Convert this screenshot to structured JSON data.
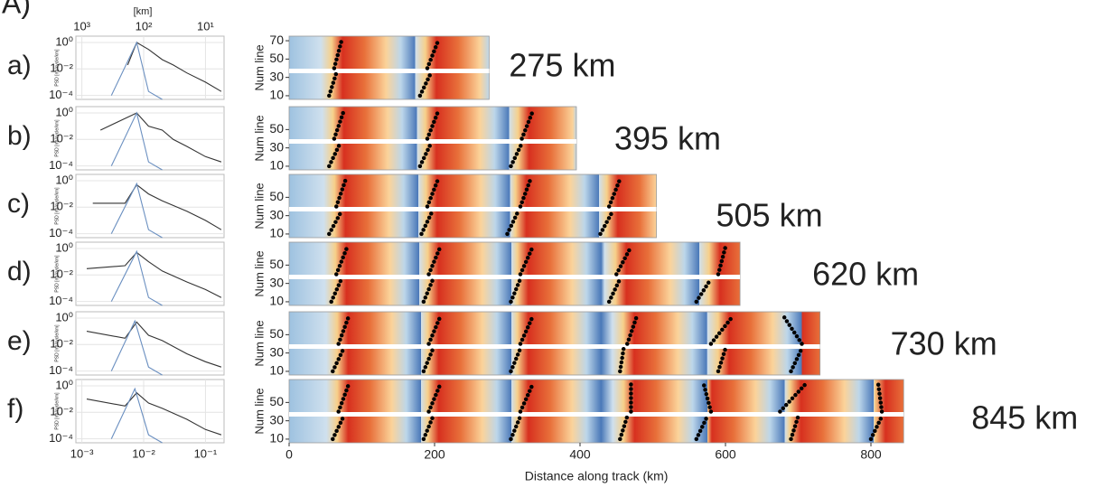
{
  "figure_label": "A)",
  "chart_data": [
    {
      "type": "line",
      "panel_label": "a)",
      "ylabel": "PSD [m²/cycle/km]",
      "log_x": true,
      "log_y": true,
      "xlim": [
        0.0008,
        0.2
      ],
      "ylim": [
        5e-05,
        3
      ],
      "yticks": [
        {
          "value": 1,
          "label": "10⁰"
        },
        {
          "value": 0.01,
          "label": "10⁻²"
        },
        {
          "value": 0.0001,
          "label": "10⁻⁴"
        }
      ],
      "x2label": "[km]",
      "x2ticks": [
        {
          "value": 1000,
          "label": "10³"
        },
        {
          "value": 100,
          "label": "10²"
        },
        {
          "value": 10,
          "label": "10¹"
        }
      ],
      "grid": true,
      "series": [
        {
          "color": "#333333",
          "x": [
            0.0055,
            0.0077,
            0.012,
            0.02,
            0.03,
            0.05,
            0.1,
            0.18
          ],
          "values": [
            0.02,
            1,
            0.3,
            0.05,
            0.02,
            0.005,
            0.001,
            0.0002
          ]
        },
        {
          "color": "#6a8fc0",
          "x": [
            0.003,
            0.0077,
            0.012,
            0.02
          ],
          "values": [
            0.0001,
            1,
            0.0002,
            5e-05
          ]
        }
      ]
    },
    {
      "type": "line",
      "panel_label": "b)",
      "ylabel": "PSD [m²/cycle/km]",
      "log_x": true,
      "log_y": true,
      "xlim": [
        0.0008,
        0.2
      ],
      "ylim": [
        5e-05,
        3
      ],
      "yticks": [
        {
          "value": 1,
          "label": "10⁰"
        },
        {
          "value": 0.01,
          "label": "10⁻²"
        },
        {
          "value": 0.0001,
          "label": "10⁻⁴"
        }
      ],
      "grid": true,
      "series": [
        {
          "color": "#333333",
          "x": [
            0.002,
            0.0077,
            0.012,
            0.02,
            0.03,
            0.05,
            0.1,
            0.18
          ],
          "values": [
            0.05,
            1,
            0.1,
            0.05,
            0.01,
            0.003,
            0.0005,
            0.0002
          ]
        },
        {
          "color": "#6a8fc0",
          "x": [
            0.003,
            0.0077,
            0.012,
            0.02
          ],
          "values": [
            0.0001,
            1,
            0.0002,
            5e-05
          ]
        }
      ]
    },
    {
      "type": "line",
      "panel_label": "c)",
      "ylabel": "PSD [m²/cycle/km]",
      "log_x": true,
      "log_y": true,
      "xlim": [
        0.0008,
        0.2
      ],
      "ylim": [
        5e-05,
        3
      ],
      "yticks": [
        {
          "value": 1,
          "label": "10⁰"
        },
        {
          "value": 0.01,
          "label": "10⁻²"
        },
        {
          "value": 0.0001,
          "label": "10⁻⁴"
        }
      ],
      "grid": true,
      "series": [
        {
          "color": "#333333",
          "x": [
            0.0015,
            0.005,
            0.0077,
            0.012,
            0.02,
            0.05,
            0.1,
            0.18
          ],
          "values": [
            0.02,
            0.02,
            0.5,
            0.1,
            0.03,
            0.005,
            0.001,
            0.0002
          ]
        },
        {
          "color": "#6a8fc0",
          "x": [
            0.003,
            0.0077,
            0.012,
            0.02
          ],
          "values": [
            0.0001,
            0.6,
            0.0002,
            5e-05
          ]
        }
      ]
    },
    {
      "type": "line",
      "panel_label": "d)",
      "ylabel": "PSD [m²/cycle/km]",
      "log_x": true,
      "log_y": true,
      "xlim": [
        0.0008,
        0.2
      ],
      "ylim": [
        5e-05,
        3
      ],
      "yticks": [
        {
          "value": 1,
          "label": "10⁰"
        },
        {
          "value": 0.01,
          "label": "10⁻²"
        },
        {
          "value": 0.0001,
          "label": "10⁻⁴"
        }
      ],
      "grid": true,
      "series": [
        {
          "color": "#333333",
          "x": [
            0.0012,
            0.005,
            0.0077,
            0.012,
            0.02,
            0.05,
            0.1,
            0.18
          ],
          "values": [
            0.03,
            0.05,
            0.5,
            0.1,
            0.02,
            0.003,
            0.0008,
            0.0002
          ]
        },
        {
          "color": "#6a8fc0",
          "x": [
            0.003,
            0.0077,
            0.012,
            0.02
          ],
          "values": [
            0.0001,
            0.6,
            0.0002,
            5e-05
          ]
        }
      ]
    },
    {
      "type": "line",
      "panel_label": "e)",
      "ylabel": "PSD [m²/cycle/km]",
      "log_x": true,
      "log_y": true,
      "xlim": [
        0.0008,
        0.2
      ],
      "ylim": [
        5e-05,
        3
      ],
      "yticks": [
        {
          "value": 1,
          "label": "10⁰"
        },
        {
          "value": 0.01,
          "label": "10⁻²"
        },
        {
          "value": 0.0001,
          "label": "10⁻⁴"
        }
      ],
      "grid": true,
      "series": [
        {
          "color": "#333333",
          "x": [
            0.0012,
            0.005,
            0.0077,
            0.012,
            0.02,
            0.05,
            0.1,
            0.18
          ],
          "values": [
            0.1,
            0.03,
            0.5,
            0.05,
            0.02,
            0.002,
            0.0005,
            0.0002
          ]
        },
        {
          "color": "#6a8fc0",
          "x": [
            0.003,
            0.0072,
            0.012,
            0.02
          ],
          "values": [
            0.0001,
            0.6,
            0.0002,
            5e-05
          ]
        }
      ]
    },
    {
      "type": "line",
      "panel_label": "f)",
      "ylabel": "PSD [m²/cycle/km]",
      "log_x": true,
      "log_y": true,
      "xlim": [
        0.0008,
        0.2
      ],
      "ylim": [
        5e-05,
        3
      ],
      "yticks": [
        {
          "value": 1,
          "label": "10⁰"
        },
        {
          "value": 0.01,
          "label": "10⁻²"
        },
        {
          "value": 0.0001,
          "label": "10⁻⁴"
        }
      ],
      "xticks": [
        {
          "value": 0.001,
          "label": "10⁻³"
        },
        {
          "value": 0.01,
          "label": "10⁻²"
        },
        {
          "value": 0.1,
          "label": "10⁻¹"
        }
      ],
      "grid": true,
      "series": [
        {
          "color": "#333333",
          "x": [
            0.0012,
            0.005,
            0.0077,
            0.012,
            0.02,
            0.05,
            0.1,
            0.18
          ],
          "values": [
            0.1,
            0.03,
            0.3,
            0.05,
            0.02,
            0.003,
            0.0005,
            0.0002
          ]
        },
        {
          "color": "#6a8fc0",
          "x": [
            0.003,
            0.0072,
            0.012,
            0.02
          ],
          "values": [
            0.0001,
            0.6,
            0.0002,
            5e-05
          ]
        }
      ]
    },
    {
      "type": "heatmap",
      "annotation": "275 km",
      "ylabel": "Num line",
      "xlim": [
        0,
        275
      ],
      "ylim": [
        6,
        75
      ],
      "yticks": [
        10,
        30,
        50,
        70
      ],
      "num_lines": [
        10,
        35,
        null,
        40,
        70
      ],
      "fronts": [
        [
          55,
          65,
          null,
          62,
          72
        ],
        [
          180,
          195,
          null,
          190,
          205
        ]
      ]
    },
    {
      "type": "heatmap",
      "annotation": "395 km",
      "ylabel": "Num line",
      "xlim": [
        0,
        395
      ],
      "ylim": [
        6,
        75
      ],
      "yticks": [
        10,
        30,
        50
      ],
      "num_lines": [
        10,
        35,
        null,
        40,
        70
      ],
      "fronts": [
        [
          55,
          70,
          null,
          62,
          75
        ],
        [
          180,
          195,
          null,
          190,
          205
        ],
        [
          305,
          320,
          null,
          320,
          335
        ]
      ]
    },
    {
      "type": "heatmap",
      "annotation": "505 km",
      "ylabel": "Num line",
      "xlim": [
        0,
        505
      ],
      "ylim": [
        6,
        75
      ],
      "yticks": [
        10,
        30,
        50
      ],
      "num_lines": [
        10,
        35,
        null,
        40,
        70
      ],
      "fronts": [
        [
          55,
          72,
          null,
          65,
          78
        ],
        [
          182,
          197,
          null,
          190,
          205
        ],
        [
          300,
          315,
          null,
          318,
          332
        ],
        [
          428,
          445,
          null,
          440,
          455
        ]
      ]
    },
    {
      "type": "heatmap",
      "annotation": "620 km",
      "ylabel": "Num line",
      "xlim": [
        0,
        620
      ],
      "ylim": [
        6,
        75
      ],
      "yticks": [
        10,
        30,
        50
      ],
      "num_lines": [
        10,
        35,
        null,
        40,
        70
      ],
      "fronts": [
        [
          58,
          72,
          null,
          65,
          80
        ],
        [
          185,
          198,
          null,
          192,
          208
        ],
        [
          305,
          318,
          null,
          318,
          335
        ],
        [
          440,
          455,
          null,
          450,
          470
        ],
        [
          560,
          580,
          null,
          590,
          600
        ]
      ]
    },
    {
      "type": "heatmap",
      "annotation": "730 km",
      "ylabel": "Num line",
      "xlim": [
        0,
        730
      ],
      "ylim": [
        6,
        75
      ],
      "yticks": [
        10,
        30,
        50
      ],
      "num_lines": [
        10,
        35,
        null,
        40,
        70
      ],
      "fronts": [
        [
          60,
          75,
          null,
          68,
          82
        ],
        [
          185,
          198,
          null,
          192,
          208
        ],
        [
          305,
          318,
          null,
          318,
          335
        ],
        [
          455,
          460,
          null,
          465,
          478
        ],
        [
          590,
          600,
          null,
          580,
          610
        ],
        [
          690,
          705,
          null,
          705,
          680
        ]
      ]
    },
    {
      "type": "heatmap",
      "annotation": "845 km",
      "ylabel": "Num line",
      "xlim": [
        0,
        845
      ],
      "ylim": [
        6,
        75
      ],
      "yticks": [
        10,
        30,
        50
      ],
      "xticks": [
        0,
        200,
        400,
        600,
        800
      ],
      "xlabel": "Distance along track (km)",
      "num_lines": [
        10,
        35,
        null,
        40,
        70
      ],
      "fronts": [
        [
          60,
          75,
          null,
          68,
          82
        ],
        [
          185,
          198,
          null,
          192,
          208
        ],
        [
          305,
          318,
          null,
          318,
          335
        ],
        [
          455,
          465,
          null,
          470,
          470
        ],
        [
          560,
          575,
          null,
          580,
          570
        ],
        [
          690,
          700,
          null,
          675,
          710
        ],
        [
          800,
          815,
          null,
          815,
          810
        ]
      ]
    }
  ]
}
